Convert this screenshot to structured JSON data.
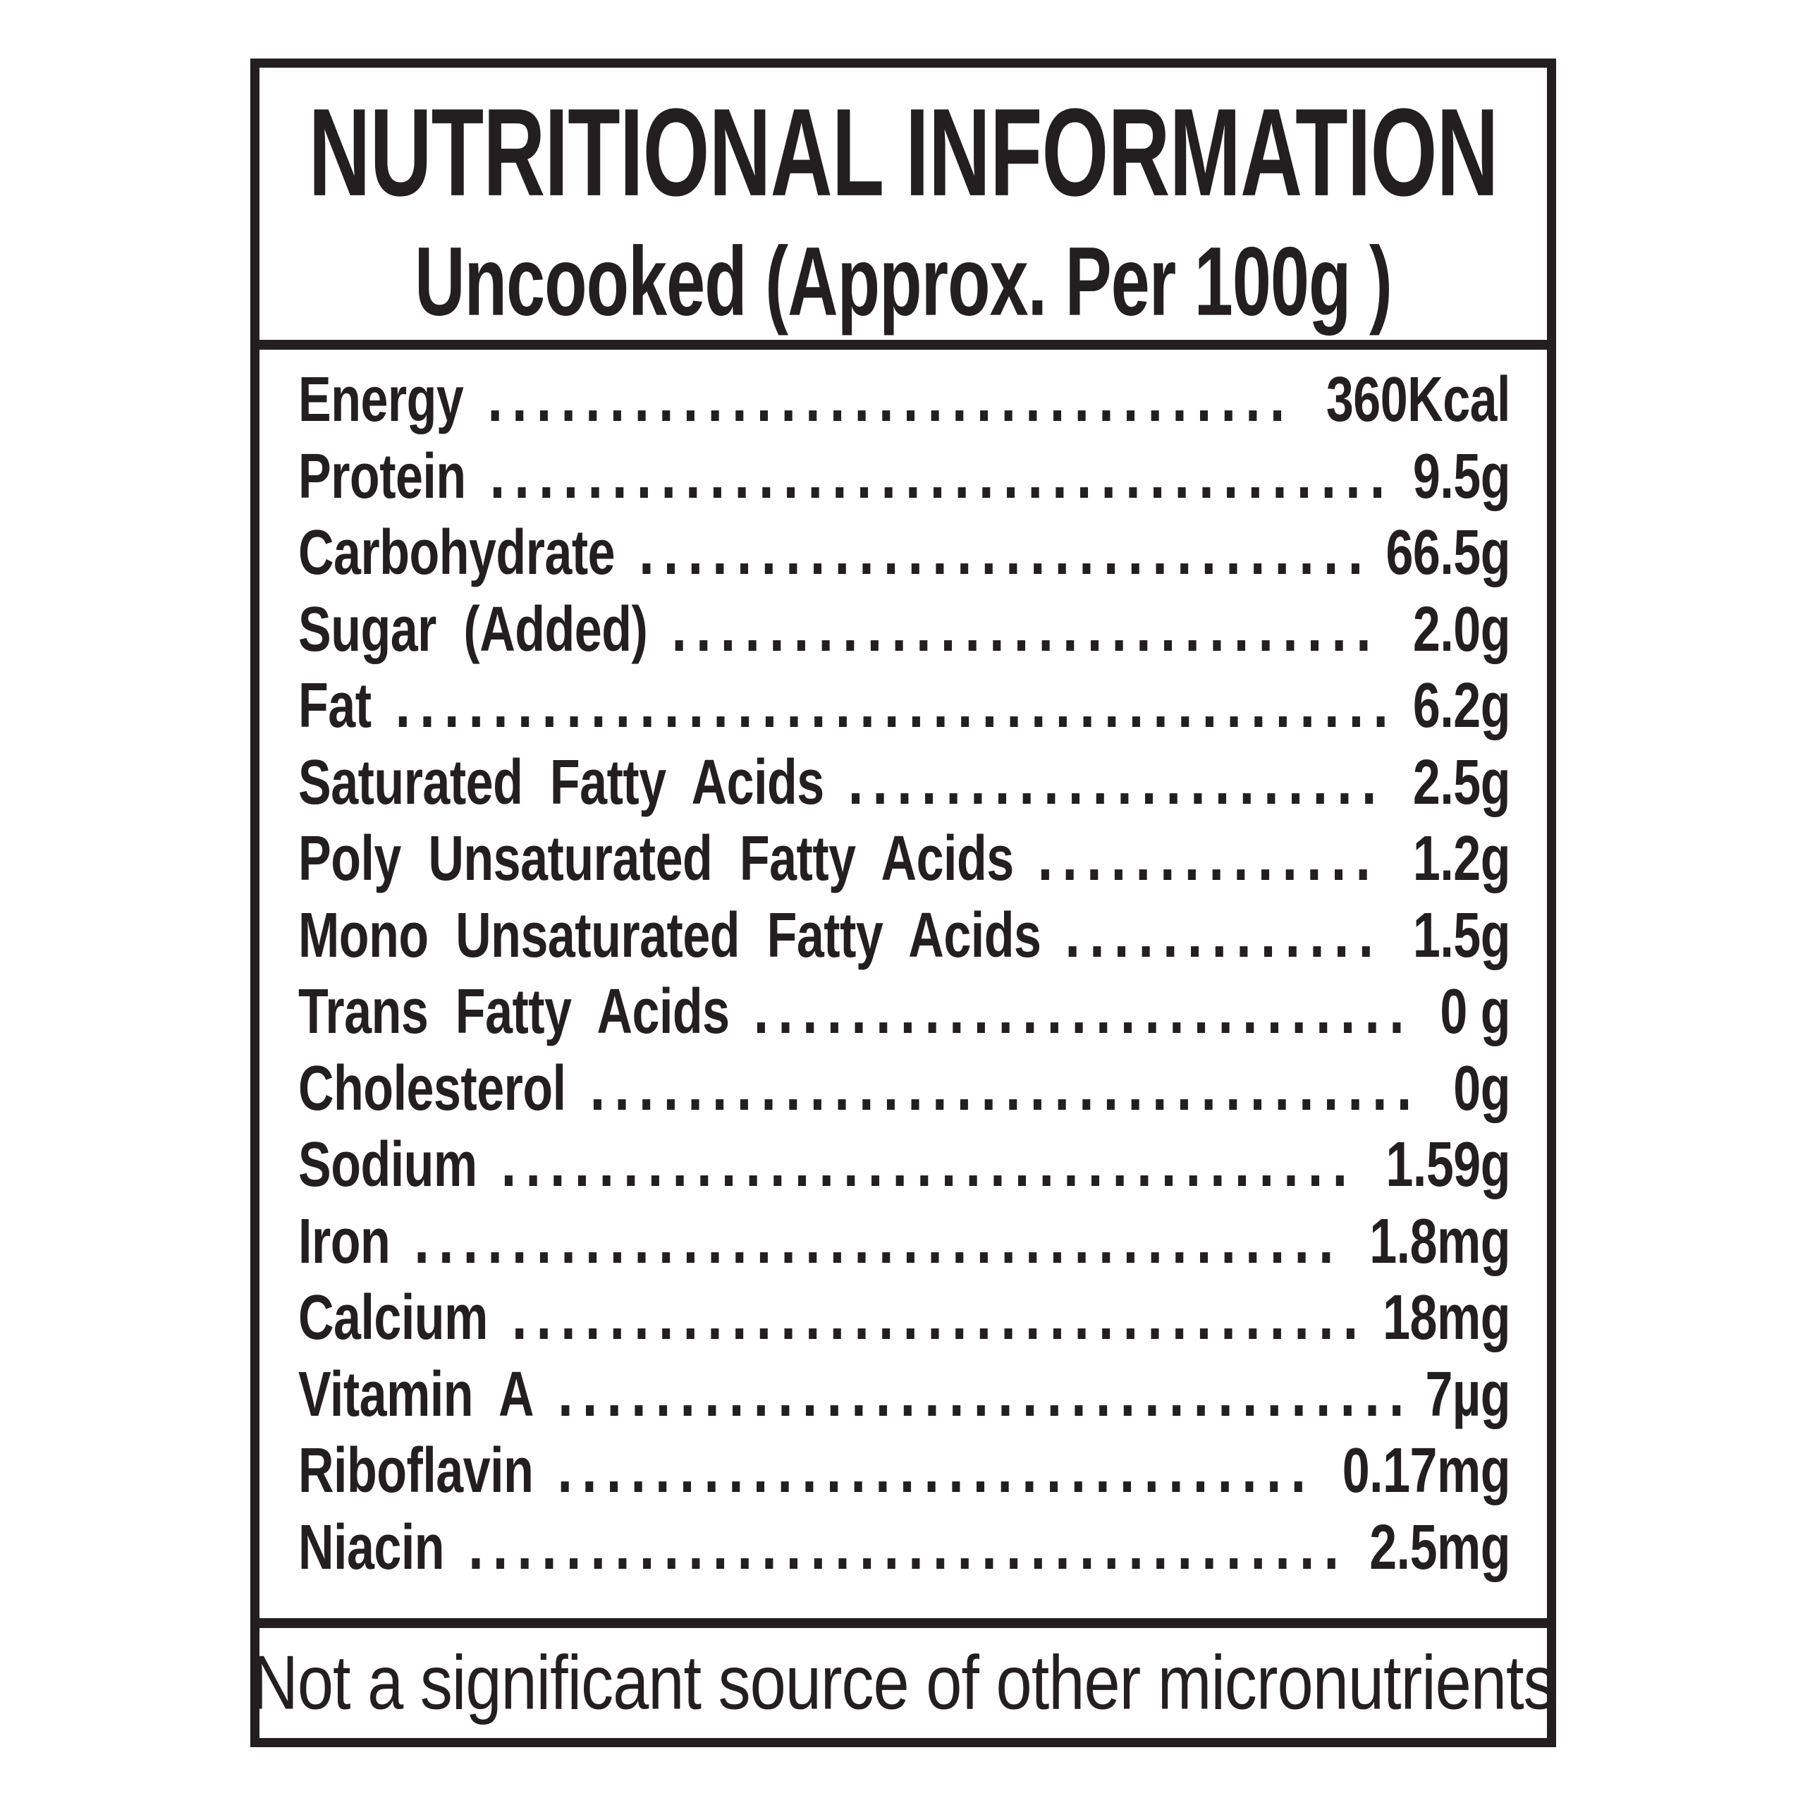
{
  "label": {
    "title": "NUTRITIONAL INFORMATION",
    "subtitle": "Uncooked (Approx. Per 100g )",
    "rows": [
      {
        "name": "Energy",
        "value": "360Kcal"
      },
      {
        "name": "Protein",
        "value": "9.5g"
      },
      {
        "name": "Carbohydrate",
        "value": "66.5g"
      },
      {
        "name": "Sugar (Added)",
        "value": "2.0g"
      },
      {
        "name": "Fat",
        "value": "6.2g"
      },
      {
        "name": "Saturated Fatty Acids",
        "value": "2.5g"
      },
      {
        "name": "Poly Unsaturated Fatty Acids",
        "value": "1.2g"
      },
      {
        "name": "Mono Unsaturated Fatty Acids",
        "value": "1.5g"
      },
      {
        "name": "Trans Fatty Acids",
        "value": "0 g"
      },
      {
        "name": "Cholesterol",
        "value": "0g"
      },
      {
        "name": "Sodium",
        "value": "1.59g"
      },
      {
        "name": "Iron",
        "value": "1.8mg"
      },
      {
        "name": "Calcium",
        "value": "18mg"
      },
      {
        "name": "Vitamin A",
        "value": "7µg"
      },
      {
        "name": "Riboflavin",
        "value": "0.17mg"
      },
      {
        "name": "Niacin",
        "value": "2.5mg"
      }
    ],
    "footer": "Not a significant source of other micronutrients",
    "colors": {
      "ink": "#231f20",
      "background": "#ffffff"
    }
  }
}
